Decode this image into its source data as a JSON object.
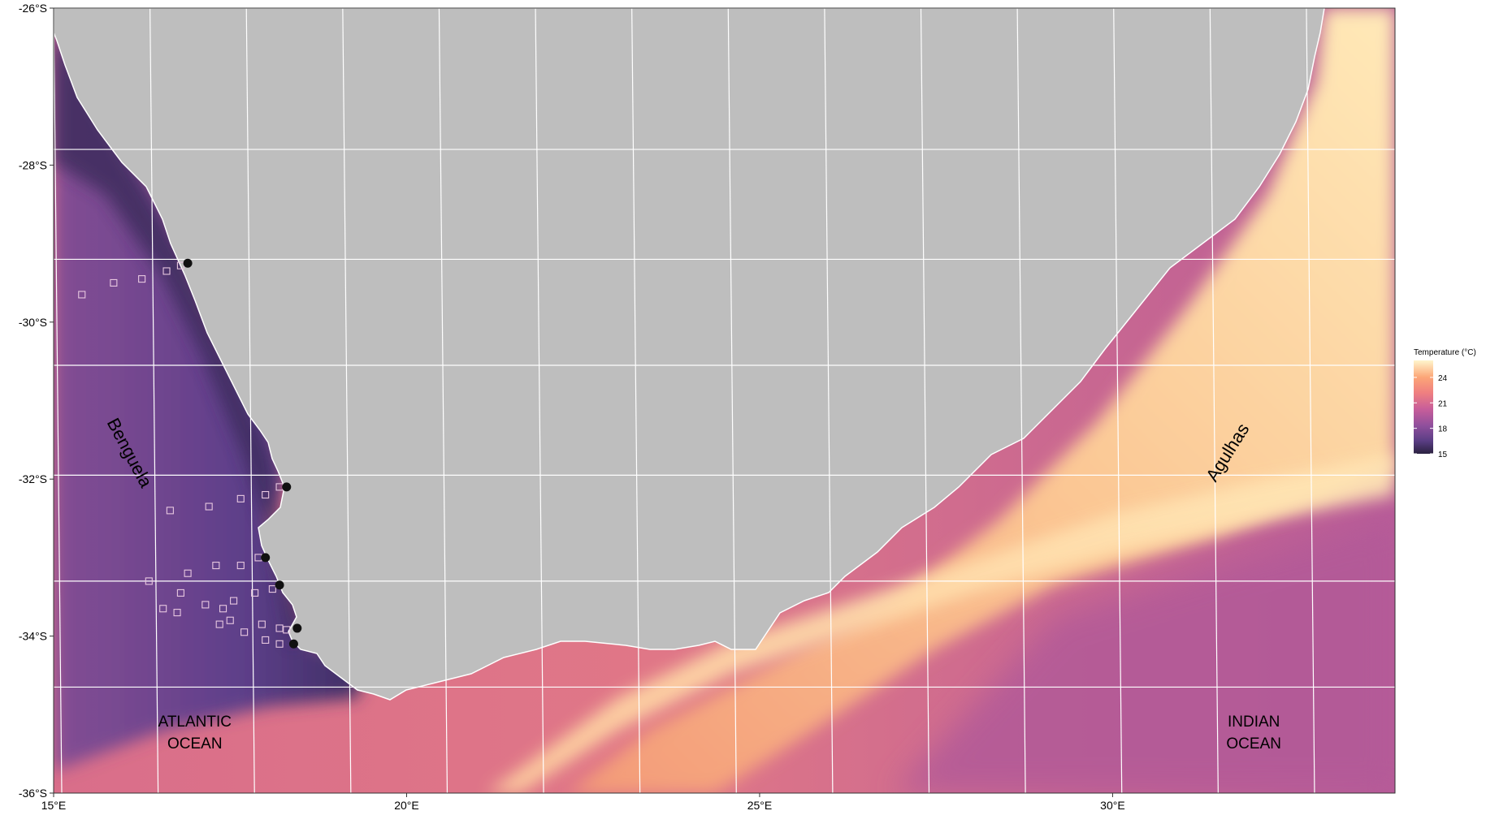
{
  "map": {
    "lon_range": [
      15,
      34
    ],
    "lat_range": [
      -36,
      -26
    ],
    "lon_ticks": [
      {
        "value": 15,
        "label": "15°E"
      },
      {
        "value": 20,
        "label": "20°E"
      },
      {
        "value": 25,
        "label": "25°E"
      },
      {
        "value": 30,
        "label": "30°E"
      }
    ],
    "lat_ticks": [
      {
        "value": -26,
        "label": "-26°S"
      },
      {
        "value": -28,
        "label": "-28°S"
      },
      {
        "value": -30,
        "label": "-30°S"
      },
      {
        "value": -32,
        "label": "-32°S"
      },
      {
        "value": -34,
        "label": "-34°S"
      },
      {
        "value": -36,
        "label": "-36°S"
      }
    ],
    "ocean_labels": [
      {
        "lines": [
          "ATLANTIC",
          "OCEAN"
        ],
        "lon": 17.0,
        "lat": -35.15
      },
      {
        "lines": [
          "INDIAN",
          "OCEAN"
        ],
        "lon": 32.0,
        "lat": -35.15
      }
    ],
    "current_labels": [
      {
        "text": "Benguela",
        "lon": 16.0,
        "lat": -31.7,
        "rotate": 62
      },
      {
        "text": "Agulhas",
        "lon": 31.7,
        "lat": -31.7,
        "rotate": -58
      }
    ],
    "colors": {
      "land": "#bebebe",
      "grid": "#ffffff",
      "cold": "#2a2140",
      "warm": "#fff5cc"
    }
  },
  "legend": {
    "title": "Temperature (°C)",
    "ticks": [
      {
        "value": 24,
        "label": "24"
      },
      {
        "value": 21,
        "label": "21"
      },
      {
        "value": 18,
        "label": "18"
      },
      {
        "value": 15,
        "label": "15"
      }
    ],
    "range": [
      15,
      26
    ],
    "gradient": [
      "#fff5cc",
      "#fca677",
      "#ef7f80",
      "#c85e9a",
      "#8f4f9c",
      "#5b3e85",
      "#2a2140"
    ]
  },
  "stations_filled": [
    {
      "lon": 16.9,
      "lat": -29.25
    },
    {
      "lon": 18.3,
      "lat": -32.1
    },
    {
      "lon": 18.0,
      "lat": -33.0
    },
    {
      "lon": 18.2,
      "lat": -33.35
    },
    {
      "lon": 18.45,
      "lat": -33.9
    },
    {
      "lon": 18.4,
      "lat": -34.1
    }
  ],
  "stations_open": [
    {
      "lon": 15.4,
      "lat": -29.65
    },
    {
      "lon": 15.85,
      "lat": -29.5
    },
    {
      "lon": 16.25,
      "lat": -29.45
    },
    {
      "lon": 16.6,
      "lat": -29.35
    },
    {
      "lon": 16.8,
      "lat": -29.28
    },
    {
      "lon": 16.65,
      "lat": -32.4
    },
    {
      "lon": 17.2,
      "lat": -32.35
    },
    {
      "lon": 17.65,
      "lat": -32.25
    },
    {
      "lon": 18.0,
      "lat": -32.2
    },
    {
      "lon": 18.2,
      "lat": -32.1
    },
    {
      "lon": 16.35,
      "lat": -33.3
    },
    {
      "lon": 16.9,
      "lat": -33.2
    },
    {
      "lon": 17.3,
      "lat": -33.1
    },
    {
      "lon": 17.65,
      "lat": -33.1
    },
    {
      "lon": 17.9,
      "lat": -33.0
    },
    {
      "lon": 16.8,
      "lat": -33.45
    },
    {
      "lon": 16.55,
      "lat": -33.65
    },
    {
      "lon": 16.75,
      "lat": -33.7
    },
    {
      "lon": 17.15,
      "lat": -33.6
    },
    {
      "lon": 17.4,
      "lat": -33.65
    },
    {
      "lon": 17.55,
      "lat": -33.55
    },
    {
      "lon": 17.85,
      "lat": -33.45
    },
    {
      "lon": 18.1,
      "lat": -33.4
    },
    {
      "lon": 17.35,
      "lat": -33.85
    },
    {
      "lon": 17.5,
      "lat": -33.8
    },
    {
      "lon": 17.7,
      "lat": -33.95
    },
    {
      "lon": 17.95,
      "lat": -33.85
    },
    {
      "lon": 18.2,
      "lat": -33.9
    },
    {
      "lon": 18.3,
      "lat": -33.92
    },
    {
      "lon": 18.0,
      "lat": -34.05
    },
    {
      "lon": 18.2,
      "lat": -34.1
    }
  ]
}
